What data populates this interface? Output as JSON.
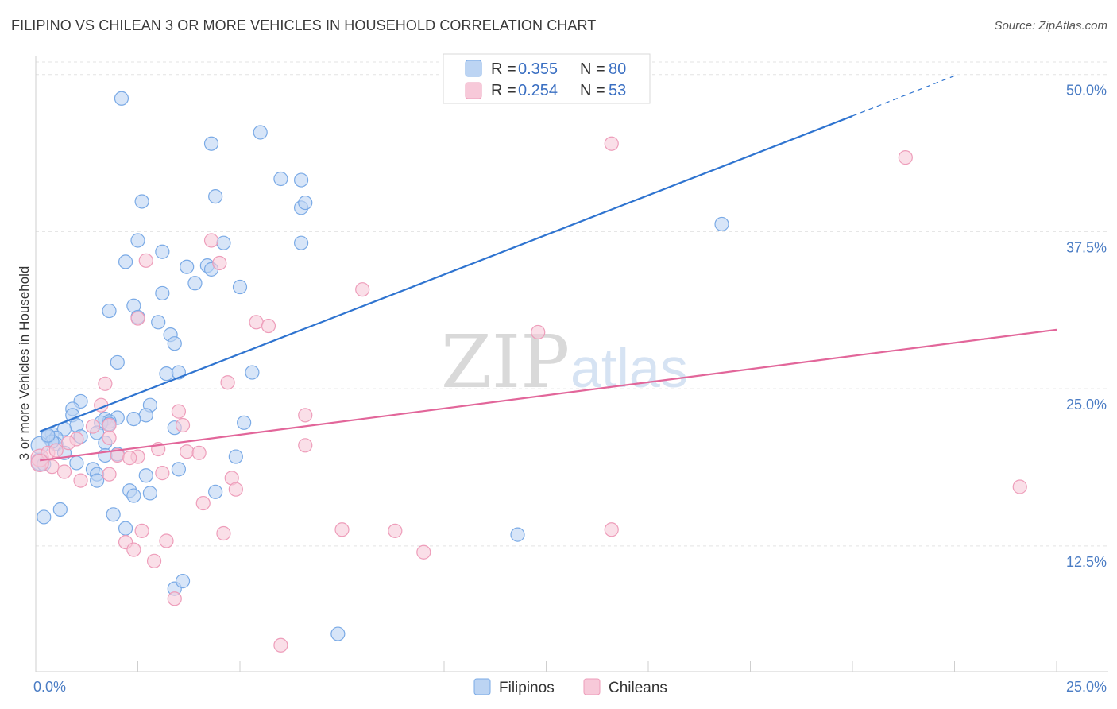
{
  "header": {
    "title": "FILIPINO VS CHILEAN 3 OR MORE VEHICLES IN HOUSEHOLD CORRELATION CHART",
    "source": "Source: ZipAtlas.com"
  },
  "watermark": {
    "zip": "ZIP",
    "atlas": "atlas"
  },
  "chart_data": {
    "type": "scatter",
    "title": "FILIPINO VS CHILEAN 3 OR MORE VEHICLES IN HOUSEHOLD CORRELATION CHART",
    "xlabel": "",
    "ylabel": "3 or more Vehicles in Household",
    "xlim": [
      0,
      25
    ],
    "ylim": [
      2.5,
      51.5
    ],
    "x_tick_labels": [
      {
        "value": 0,
        "label": "0.0%"
      },
      {
        "value": 25,
        "label": "25.0%"
      }
    ],
    "y_tick_labels": [
      {
        "value": 12.5,
        "label": "12.5%"
      },
      {
        "value": 25,
        "label": "25.0%"
      },
      {
        "value": 37.5,
        "label": "37.5%"
      },
      {
        "value": 50,
        "label": "50.0%"
      }
    ],
    "legend_stats": [
      {
        "r_label": "R =",
        "r_value": "0.355",
        "n_label": "N =",
        "n_value": "80"
      },
      {
        "r_label": "R =",
        "r_value": "0.254",
        "n_label": "N =",
        "n_value": "53"
      }
    ],
    "series": [
      {
        "name": "Filipinos",
        "color": "#7aaae6",
        "fill": "#bcd4f3",
        "line_color": "#2f74d0",
        "trend": {
          "x0": 0.1,
          "y0": 21.6,
          "x1": 20,
          "y1": 46.7,
          "dash_x1": 22.5,
          "dash_y1": 49.9
        },
        "points": [
          [
            2.1,
            48.1
          ],
          [
            5.5,
            45.4
          ],
          [
            4.3,
            44.5
          ],
          [
            6,
            41.7
          ],
          [
            6.5,
            41.6
          ],
          [
            4.4,
            40.3
          ],
          [
            2.6,
            39.9
          ],
          [
            6.5,
            39.4
          ],
          [
            6.6,
            39.8
          ],
          [
            2.5,
            36.8
          ],
          [
            6.5,
            36.6
          ],
          [
            4.6,
            36.6
          ],
          [
            3.1,
            35.9
          ],
          [
            2.2,
            35.1
          ],
          [
            3.7,
            34.7
          ],
          [
            4.2,
            34.8
          ],
          [
            4.3,
            34.5
          ],
          [
            3.9,
            33.4
          ],
          [
            5.0,
            33.1
          ],
          [
            3.1,
            32.6
          ],
          [
            2.4,
            31.6
          ],
          [
            1.8,
            31.2
          ],
          [
            2.5,
            30.7
          ],
          [
            3.0,
            30.3
          ],
          [
            16.8,
            38.1
          ],
          [
            3.3,
            29.3
          ],
          [
            3.4,
            28.6
          ],
          [
            2.0,
            27.1
          ],
          [
            3.2,
            26.2
          ],
          [
            3.5,
            26.3
          ],
          [
            5.3,
            26.3
          ],
          [
            1.1,
            24.0
          ],
          [
            0.9,
            23.4
          ],
          [
            2.8,
            23.7
          ],
          [
            0.9,
            22.9
          ],
          [
            2.7,
            22.9
          ],
          [
            2.0,
            22.7
          ],
          [
            1.7,
            22.6
          ],
          [
            1.8,
            22.4
          ],
          [
            1.6,
            22.3
          ],
          [
            1.8,
            22.2
          ],
          [
            1.0,
            22.1
          ],
          [
            0.7,
            21.8
          ],
          [
            5.1,
            22.3
          ],
          [
            1.5,
            21.5
          ],
          [
            0.4,
            21.4
          ],
          [
            0.3,
            21.2
          ],
          [
            0.5,
            21.1
          ],
          [
            1.1,
            21.2
          ],
          [
            3.4,
            21.9
          ],
          [
            1.7,
            20.7
          ],
          [
            0.5,
            20.6
          ],
          [
            0.4,
            20.8
          ],
          [
            0.7,
            19.9
          ],
          [
            2.0,
            19.8
          ],
          [
            4.9,
            19.6
          ],
          [
            0.1,
            19.2
          ],
          [
            0.2,
            19.0
          ],
          [
            1.0,
            19.1
          ],
          [
            1.4,
            18.6
          ],
          [
            3.5,
            18.6
          ],
          [
            1.5,
            18.2
          ],
          [
            2.7,
            18.1
          ],
          [
            1.5,
            17.7
          ],
          [
            4.4,
            16.8
          ],
          [
            2.3,
            16.9
          ],
          [
            2.8,
            16.7
          ],
          [
            2.4,
            16.5
          ],
          [
            0.6,
            15.4
          ],
          [
            1.9,
            15.0
          ],
          [
            0.2,
            14.8
          ],
          [
            2.2,
            13.9
          ],
          [
            11.8,
            13.4
          ],
          [
            3.4,
            9.1
          ],
          [
            3.6,
            9.7
          ],
          [
            7.4,
            5.5
          ],
          [
            0.1,
            20.5
          ],
          [
            0.3,
            21.3
          ],
          [
            1.7,
            19.7
          ],
          [
            2.4,
            22.6
          ]
        ]
      },
      {
        "name": "Chileans",
        "color": "#ee9dba",
        "fill": "#f7c9d9",
        "line_color": "#e2669a",
        "trend": {
          "x0": 0.1,
          "y0": 19.3,
          "x1": 25,
          "y1": 29.7
        },
        "points": [
          [
            14.1,
            44.5
          ],
          [
            21.3,
            43.4
          ],
          [
            4.3,
            36.8
          ],
          [
            4.5,
            35.0
          ],
          [
            2.7,
            35.2
          ],
          [
            8.0,
            32.9
          ],
          [
            2.5,
            30.6
          ],
          [
            5.4,
            30.3
          ],
          [
            5.7,
            30.0
          ],
          [
            12.3,
            29.5
          ],
          [
            1.7,
            25.4
          ],
          [
            4.7,
            25.5
          ],
          [
            1.6,
            23.7
          ],
          [
            3.5,
            23.2
          ],
          [
            6.6,
            22.9
          ],
          [
            3.6,
            22.1
          ],
          [
            1.0,
            21.0
          ],
          [
            1.8,
            22.1
          ],
          [
            1.8,
            21.1
          ],
          [
            0.8,
            20.7
          ],
          [
            6.6,
            20.5
          ],
          [
            3.0,
            20.2
          ],
          [
            3.7,
            20.0
          ],
          [
            4.0,
            19.9
          ],
          [
            2.5,
            19.6
          ],
          [
            2.0,
            19.7
          ],
          [
            0.1,
            19.5
          ],
          [
            0.4,
            18.8
          ],
          [
            0.3,
            19.9
          ],
          [
            0.7,
            18.4
          ],
          [
            1.8,
            18.2
          ],
          [
            3.1,
            18.3
          ],
          [
            4.8,
            17.9
          ],
          [
            1.1,
            17.7
          ],
          [
            4.9,
            17.0
          ],
          [
            24.1,
            17.2
          ],
          [
            4.1,
            15.9
          ],
          [
            2.6,
            13.7
          ],
          [
            4.6,
            13.5
          ],
          [
            7.5,
            13.8
          ],
          [
            8.8,
            13.7
          ],
          [
            14.1,
            13.8
          ],
          [
            3.2,
            12.9
          ],
          [
            2.2,
            12.8
          ],
          [
            2.4,
            12.2
          ],
          [
            9.5,
            12.0
          ],
          [
            2.9,
            11.3
          ],
          [
            3.4,
            8.3
          ],
          [
            6.0,
            4.6
          ],
          [
            0.1,
            19.1
          ],
          [
            0.5,
            20.1
          ],
          [
            1.4,
            22.0
          ],
          [
            2.3,
            19.5
          ]
        ]
      }
    ],
    "legend": [
      "Filipinos",
      "Chileans"
    ],
    "grid": true
  }
}
